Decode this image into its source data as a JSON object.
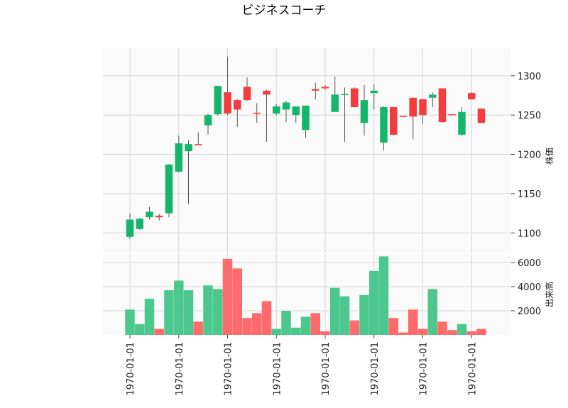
{
  "chart_data": {
    "type": "candlestick",
    "title": "ビジネスコーチ",
    "price_panel": {
      "ylabel": "株価",
      "ylim": [
        1075,
        1335
      ],
      "yticks": [
        1100,
        1150,
        1200,
        1250,
        1300
      ],
      "grid": true
    },
    "volume_panel": {
      "ylabel": "出来高",
      "ylim": [
        0,
        6700
      ],
      "yticks": [
        2000,
        4000,
        6000
      ],
      "grid": true
    },
    "x_tick_labels": [
      "1970-01-01",
      "1970-01-01",
      "1970-01-01",
      "1970-01-01",
      "1970-01-01",
      "1970-01-01",
      "1970-01-01",
      "1970-01-01"
    ],
    "x_tick_positions": [
      0,
      5,
      10,
      15,
      20,
      25,
      30,
      35
    ],
    "colors": {
      "up": "#16b56c",
      "down": "#f53c3c",
      "wick": "#555555",
      "up_volume": "#4cc88f",
      "down_volume": "#ff6b6b"
    },
    "candles": [
      {
        "open": 1095,
        "high": 1125,
        "low": 1092,
        "close": 1117,
        "volume": 2100
      },
      {
        "open": 1105,
        "high": 1119,
        "low": 1104,
        "close": 1118,
        "volume": 900
      },
      {
        "open": 1120,
        "high": 1133,
        "low": 1117,
        "close": 1127,
        "volume": 3000
      },
      {
        "open": 1122,
        "high": 1124,
        "low": 1116,
        "close": 1120,
        "volume": 500
      },
      {
        "open": 1125,
        "high": 1188,
        "low": 1120,
        "close": 1187,
        "volume": 3700
      },
      {
        "open": 1178,
        "high": 1224,
        "low": 1177,
        "close": 1214,
        "volume": 4500
      },
      {
        "open": 1204,
        "high": 1218,
        "low": 1137,
        "close": 1213,
        "volume": 3700
      },
      {
        "open": 1213,
        "high": 1228,
        "low": 1212,
        "close": 1212,
        "volume": 1100
      },
      {
        "open": 1237,
        "high": 1252,
        "low": 1225,
        "close": 1250,
        "volume": 4100
      },
      {
        "open": 1251,
        "high": 1287,
        "low": 1249,
        "close": 1287,
        "volume": 3800
      },
      {
        "open": 1279,
        "high": 1324,
        "low": 1250,
        "close": 1252,
        "volume": 6300
      },
      {
        "open": 1269,
        "high": 1270,
        "low": 1235,
        "close": 1257,
        "volume": 5500
      },
      {
        "open": 1286,
        "high": 1298,
        "low": 1268,
        "close": 1269,
        "volume": 1400
      },
      {
        "open": 1253,
        "high": 1265,
        "low": 1240,
        "close": 1252,
        "volume": 1800
      },
      {
        "open": 1281,
        "high": 1282,
        "low": 1216,
        "close": 1276,
        "volume": 2800
      },
      {
        "open": 1252,
        "high": 1264,
        "low": 1250,
        "close": 1261,
        "volume": 500
      },
      {
        "open": 1257,
        "high": 1268,
        "low": 1241,
        "close": 1266,
        "volume": 2000
      },
      {
        "open": 1250,
        "high": 1261,
        "low": 1240,
        "close": 1261,
        "volume": 600
      },
      {
        "open": 1231,
        "high": 1262,
        "low": 1221,
        "close": 1262,
        "volume": 1500
      },
      {
        "open": 1283,
        "high": 1291,
        "low": 1270,
        "close": 1281,
        "volume": 1800
      },
      {
        "open": 1286,
        "high": 1288,
        "low": 1282,
        "close": 1284,
        "volume": 300
      },
      {
        "open": 1254,
        "high": 1299,
        "low": 1254,
        "close": 1276,
        "volume": 3900
      },
      {
        "open": 1276,
        "high": 1285,
        "low": 1216,
        "close": 1277,
        "volume": 3200
      },
      {
        "open": 1284,
        "high": 1285,
        "low": 1260,
        "close": 1260,
        "volume": 1200
      },
      {
        "open": 1240,
        "high": 1288,
        "low": 1224,
        "close": 1269,
        "volume": 3300
      },
      {
        "open": 1278,
        "high": 1289,
        "low": 1257,
        "close": 1281,
        "volume": 5300
      },
      {
        "open": 1215,
        "high": 1261,
        "low": 1205,
        "close": 1260,
        "volume": 6500
      },
      {
        "open": 1260,
        "high": 1261,
        "low": 1224,
        "close": 1225,
        "volume": 1400
      },
      {
        "open": 1249,
        "high": 1249,
        "low": 1249,
        "close": 1248,
        "volume": 200
      },
      {
        "open": 1272,
        "high": 1272,
        "low": 1219,
        "close": 1248,
        "volume": 2100
      },
      {
        "open": 1270,
        "high": 1271,
        "low": 1239,
        "close": 1250,
        "volume": 500
      },
      {
        "open": 1272,
        "high": 1279,
        "low": 1260,
        "close": 1276,
        "volume": 3800
      },
      {
        "open": 1284,
        "high": 1284,
        "low": 1241,
        "close": 1241,
        "volume": 1100
      },
      {
        "open": 1251,
        "high": 1251,
        "low": 1250,
        "close": 1250,
        "volume": 400
      },
      {
        "open": 1225,
        "high": 1260,
        "low": 1224,
        "close": 1254,
        "volume": 900
      },
      {
        "open": 1278,
        "high": 1279,
        "low": 1270,
        "close": 1270,
        "volume": 300
      },
      {
        "open": 1258,
        "high": 1259,
        "low": 1240,
        "close": 1240,
        "volume": 500
      }
    ]
  }
}
